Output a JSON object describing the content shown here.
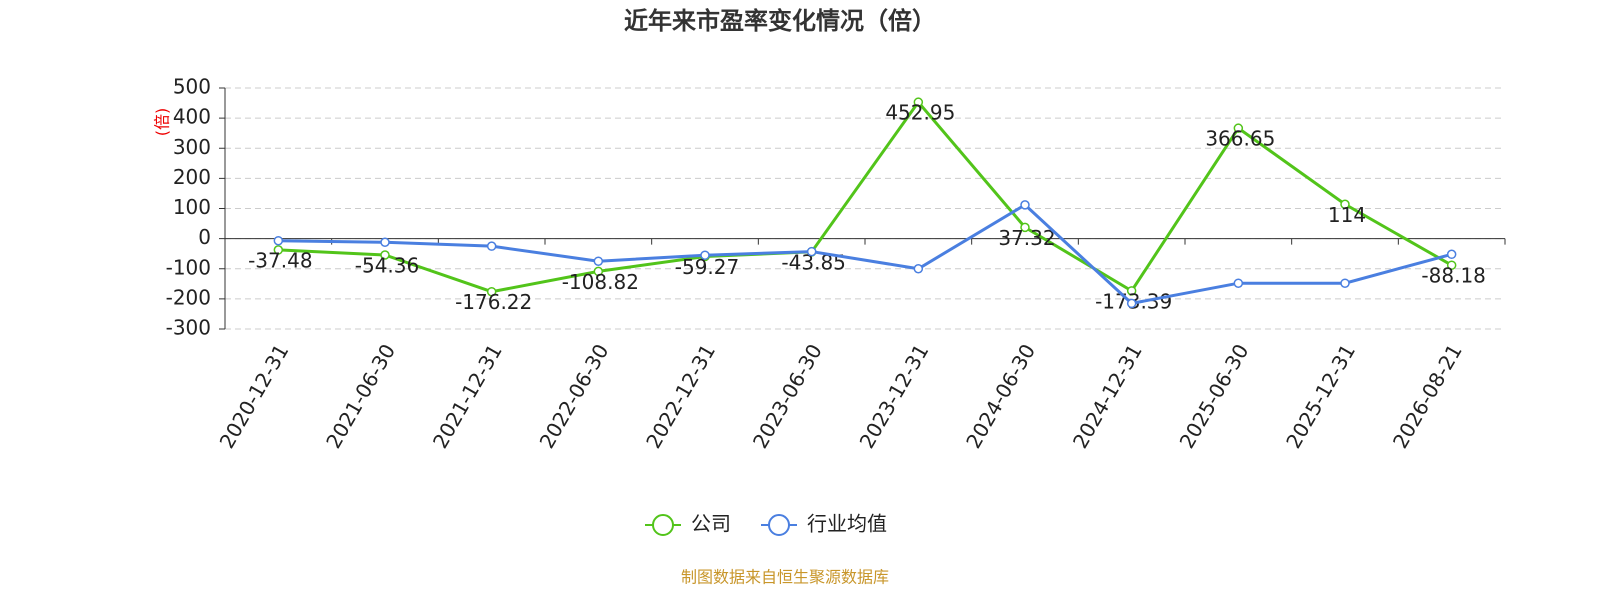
{
  "chart_data": {
    "type": "line",
    "title": "近年来市盈率变化情况（倍）",
    "y_label": "(倍)",
    "categories": [
      "2020-12-31",
      "2021-06-30",
      "2021-12-31",
      "2022-06-30",
      "2022-12-31",
      "2023-06-30",
      "2023-12-31",
      "2024-06-30",
      "2024-12-31",
      "2025-06-30",
      "2025-12-31",
      "2026-08-21"
    ],
    "series": [
      {
        "name": "公司",
        "color": "#52c41a",
        "values": [
          -37.48,
          -54.36,
          -176.22,
          -108.82,
          -59.27,
          -43.85,
          452.95,
          37.32,
          -173.39,
          366.65,
          114,
          -88.18
        ],
        "show_labels": true
      },
      {
        "name": "行业均值",
        "color": "#4a7fe0",
        "values": [
          -7,
          -12,
          -25,
          -75,
          -55,
          -43,
          -100,
          112,
          -215,
          -148,
          -148,
          -52
        ],
        "show_labels": false
      }
    ],
    "ylim": [
      -300,
      500
    ],
    "yticks": [
      -300,
      -200,
      -100,
      0,
      100,
      200,
      300,
      400,
      500
    ],
    "grid": true,
    "source": "制图数据来自恒生聚源数据库"
  }
}
